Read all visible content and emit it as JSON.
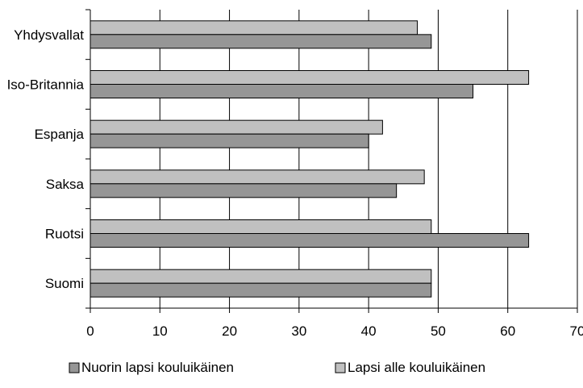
{
  "chart_data": {
    "type": "bar",
    "orientation": "horizontal",
    "categories": [
      "Yhdysvallat",
      "Iso-Britannia",
      "Espanja",
      "Saksa",
      "Ruotsi",
      "Suomi"
    ],
    "series": [
      {
        "name": "Lapsi alle kouluikäinen",
        "color": "#c0c0c0",
        "values": [
          47,
          63,
          42,
          48,
          49,
          49
        ]
      },
      {
        "name": "Nuorin lapsi kouluikäinen",
        "color": "#969696",
        "values": [
          49,
          55,
          40,
          44,
          63,
          49
        ]
      }
    ],
    "xlim": [
      0,
      70
    ],
    "x_ticks": [
      "0",
      "10",
      "20",
      "30",
      "40",
      "50",
      "60",
      "70"
    ],
    "grid": true,
    "legend": {
      "position": "bottom",
      "order": [
        "Nuorin lapsi kouluikäinen",
        "Lapsi alle kouluikäinen"
      ]
    }
  }
}
